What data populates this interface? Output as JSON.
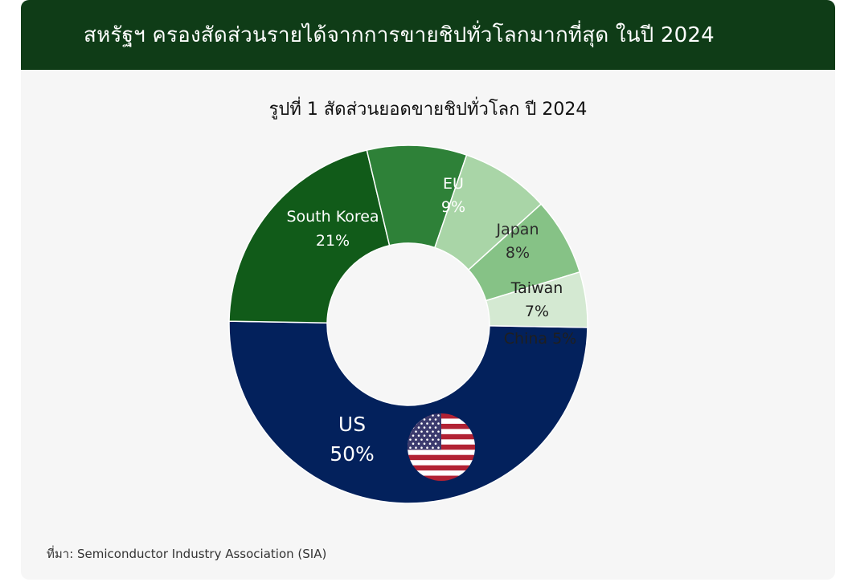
{
  "header": {
    "title": "สหรัฐฯ ครองสัดส่วนรายได้จากการขายชิปทั่วโลกมากที่สุด ในปี 2024"
  },
  "source": "ที่มา: Semiconductor Industry Association (SIA)",
  "chart_data": {
    "type": "pie",
    "title": "รูปที่ 1 สัดส่วนยอดขายชิปทั่วโลก ปี 2024",
    "donut": true,
    "unit": "%",
    "slices": [
      {
        "name": "US",
        "value": 50,
        "label": "50%",
        "color": "#03215c",
        "text_color": "#ffffff",
        "icon": "us-flag-icon"
      },
      {
        "name": "South Korea",
        "value": 21,
        "label": "21%",
        "color": "#115b19",
        "text_color": "#ffffff"
      },
      {
        "name": "EU",
        "value": 9,
        "label": "9%",
        "color": "#2e8138",
        "text_color": "#ffffff"
      },
      {
        "name": "Japan",
        "value": 8,
        "label": "8%",
        "color": "#a9d5a7",
        "text_color": "#2b2b2b"
      },
      {
        "name": "Taiwan",
        "value": 7,
        "label": "7%",
        "color": "#86c286",
        "text_color": "#1f1f1f"
      },
      {
        "name": "China",
        "value": 5,
        "label": "5%",
        "color": "#d4e9d2",
        "text_color": "#1f1f1f"
      }
    ],
    "legend": "none"
  }
}
